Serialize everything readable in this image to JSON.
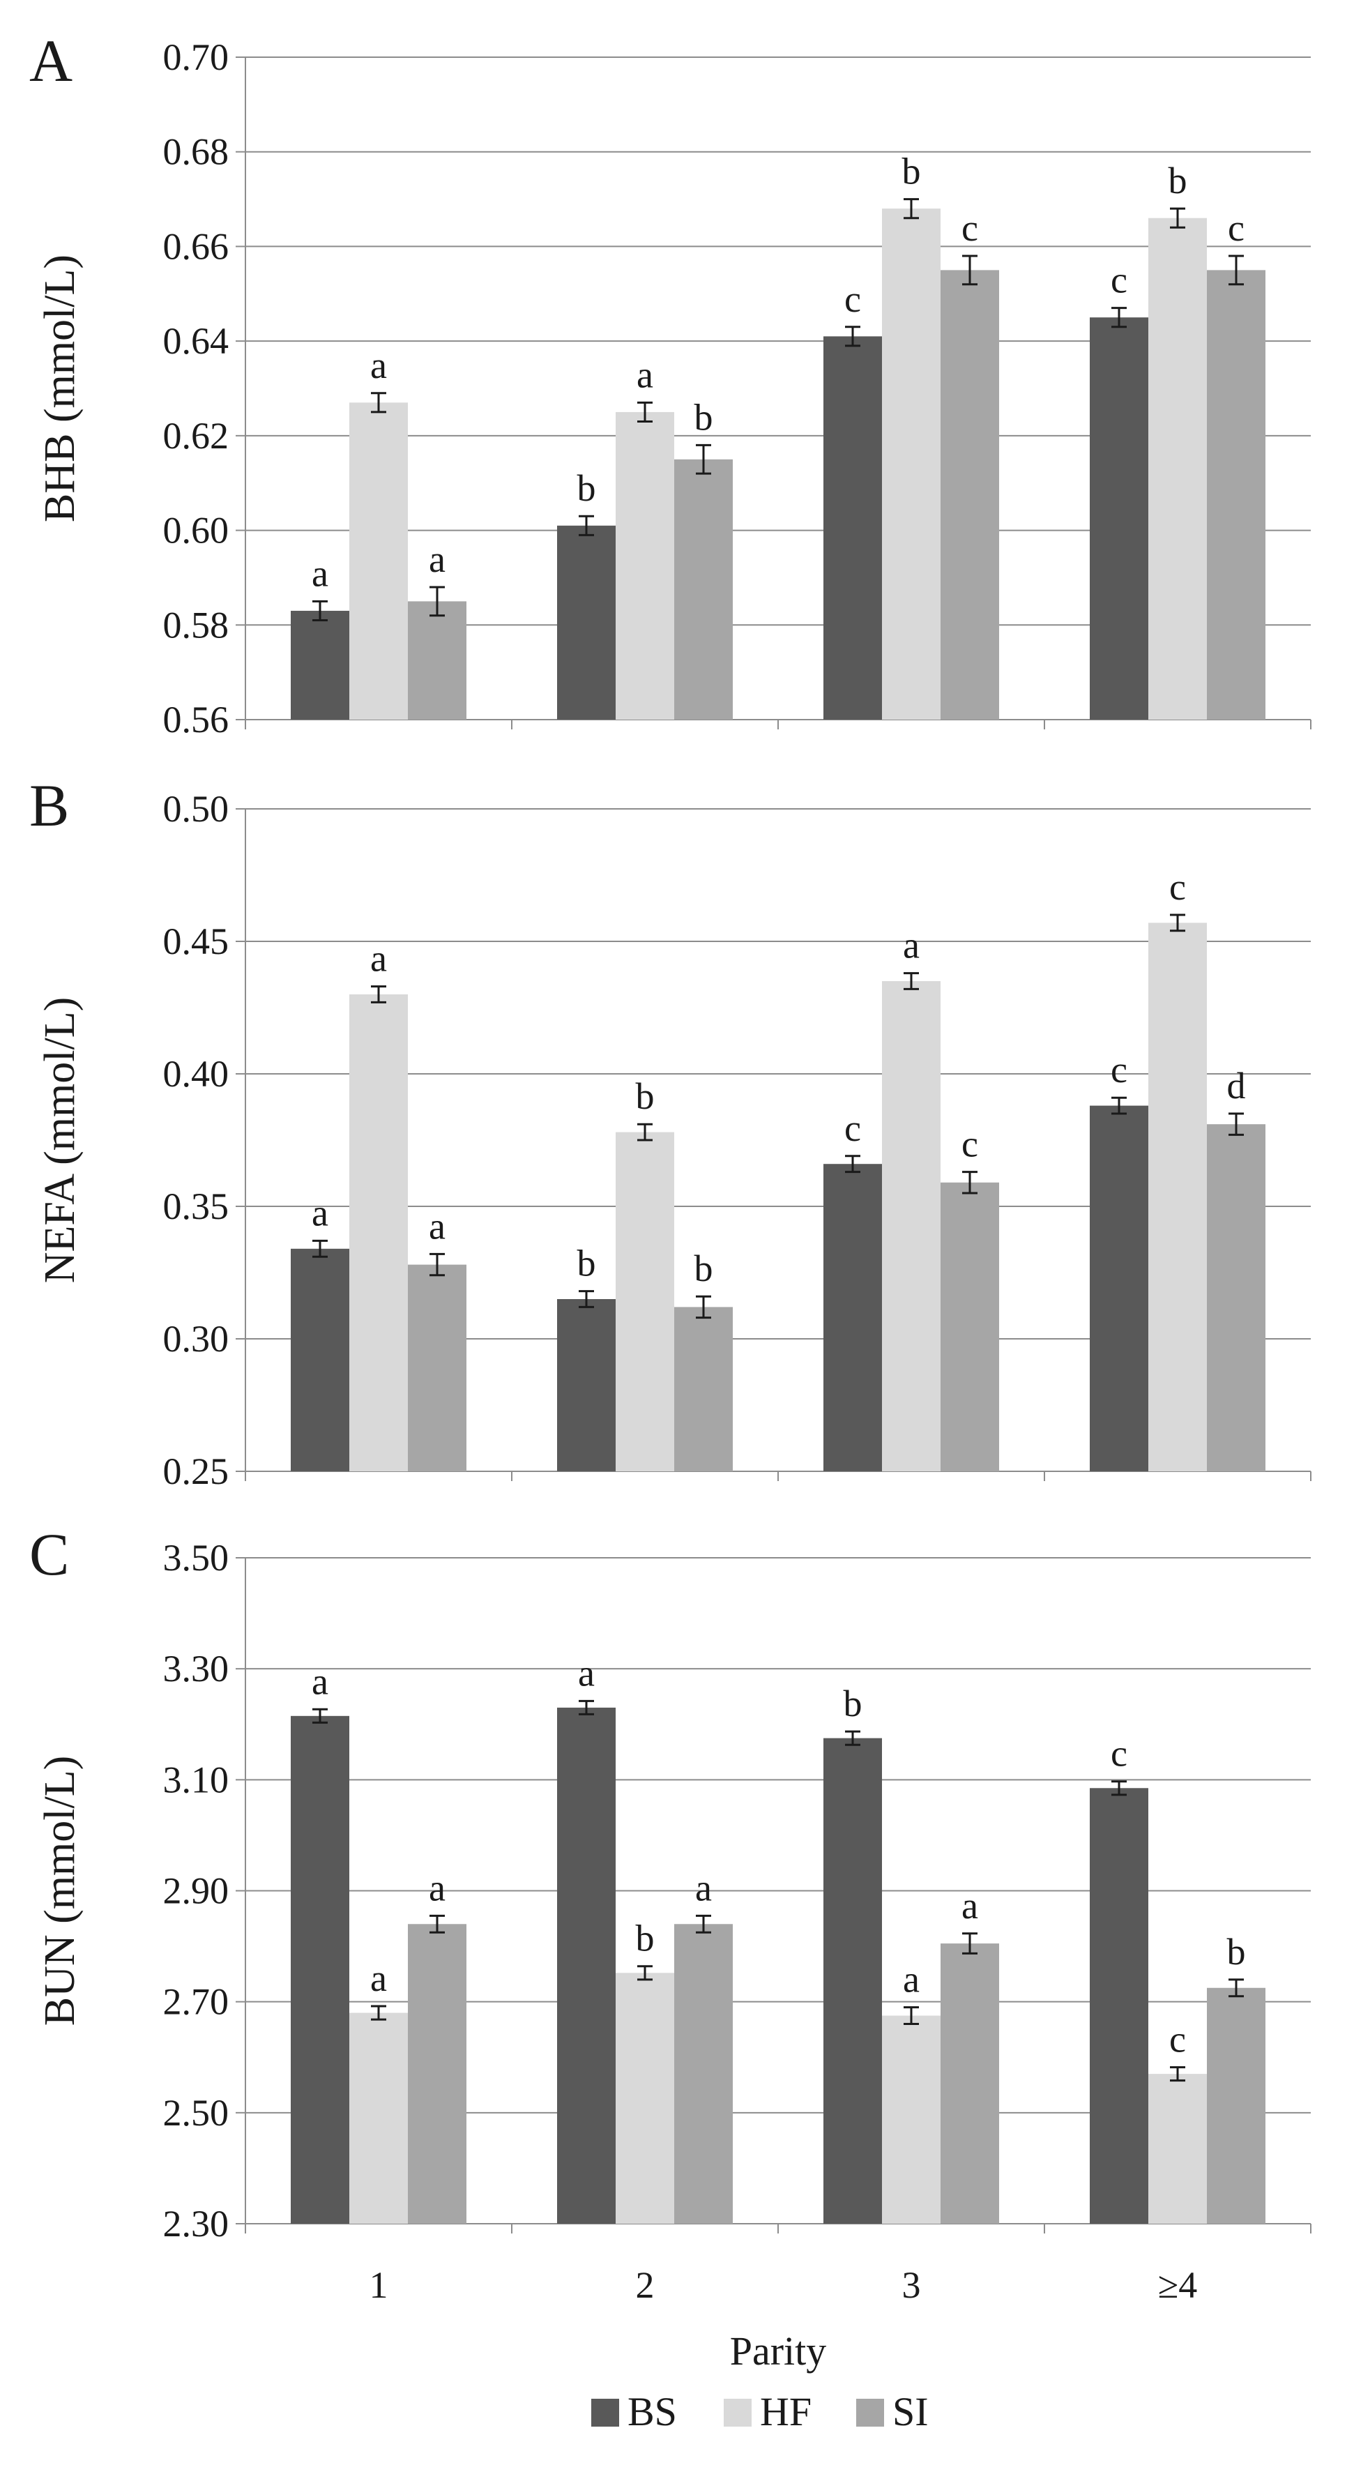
{
  "chart_data": {
    "type": "bar",
    "series_names": [
      "BS",
      "HF",
      "SI"
    ],
    "colors": {
      "BS": "#595959",
      "HF": "#d9d9d9",
      "SI": "#a6a6a6"
    },
    "categories": [
      "1",
      "2",
      "3",
      "≥4"
    ],
    "xlabel": "Parity",
    "panels": [
      {
        "letter": "A",
        "ylabel": "BHB (mmol/L)",
        "ylim": [
          0.56,
          0.7
        ],
        "ticks": [
          0.56,
          0.58,
          0.6,
          0.62,
          0.64,
          0.66,
          0.68,
          0.7
        ],
        "tick_labels": [
          "0.56",
          "0.58",
          "0.60",
          "0.62",
          "0.64",
          "0.66",
          "0.68",
          "0.70"
        ],
        "series": [
          {
            "name": "BS",
            "values": [
              0.583,
              0.601,
              0.641,
              0.645
            ],
            "errors": [
              0.002,
              0.002,
              0.002,
              0.002
            ],
            "letters": [
              "a",
              "b",
              "c",
              "c"
            ]
          },
          {
            "name": "HF",
            "values": [
              0.627,
              0.625,
              0.668,
              0.666
            ],
            "errors": [
              0.002,
              0.002,
              0.002,
              0.002
            ],
            "letters": [
              "a",
              "a",
              "b",
              "b"
            ]
          },
          {
            "name": "SI",
            "values": [
              0.585,
              0.615,
              0.655,
              0.655
            ],
            "errors": [
              0.003,
              0.003,
              0.003,
              0.003
            ],
            "letters": [
              "a",
              "b",
              "c",
              "c"
            ]
          }
        ]
      },
      {
        "letter": "B",
        "ylabel": "NEFA (mmol/L)",
        "ylim": [
          0.25,
          0.5
        ],
        "ticks": [
          0.25,
          0.3,
          0.35,
          0.4,
          0.45,
          0.5
        ],
        "tick_labels": [
          "0.25",
          "0.30",
          "0.35",
          "0.40",
          "0.45",
          "0.50"
        ],
        "series": [
          {
            "name": "BS",
            "values": [
              0.334,
              0.315,
              0.366,
              0.388
            ],
            "errors": [
              0.003,
              0.003,
              0.003,
              0.003
            ],
            "letters": [
              "a",
              "b",
              "c",
              "c"
            ]
          },
          {
            "name": "HF",
            "values": [
              0.43,
              0.378,
              0.435,
              0.457
            ],
            "errors": [
              0.003,
              0.003,
              0.003,
              0.003
            ],
            "letters": [
              "a",
              "b",
              "a",
              "c"
            ]
          },
          {
            "name": "SI",
            "values": [
              0.328,
              0.312,
              0.359,
              0.381
            ],
            "errors": [
              0.004,
              0.004,
              0.004,
              0.004
            ],
            "letters": [
              "a",
              "b",
              "c",
              "d"
            ]
          }
        ]
      },
      {
        "letter": "C",
        "ylabel": "BUN (mmol/L)",
        "ylim": [
          2.3,
          3.5
        ],
        "ticks": [
          2.3,
          2.5,
          2.7,
          2.9,
          3.1,
          3.3,
          3.5
        ],
        "tick_labels": [
          "2.30",
          "2.50",
          "2.70",
          "2.90",
          "3.10",
          "3.30",
          "3.50"
        ],
        "series": [
          {
            "name": "BS",
            "values": [
              3.215,
              3.23,
              3.175,
              3.085
            ],
            "errors": [
              0.012,
              0.012,
              0.012,
              0.012
            ],
            "letters": [
              "a",
              "a",
              "b",
              "c"
            ]
          },
          {
            "name": "HF",
            "values": [
              2.68,
              2.752,
              2.675,
              2.57
            ],
            "errors": [
              0.012,
              0.012,
              0.015,
              0.012
            ],
            "letters": [
              "a",
              "b",
              "a",
              "c"
            ]
          },
          {
            "name": "SI",
            "values": [
              2.84,
              2.84,
              2.805,
              2.725
            ],
            "errors": [
              0.015,
              0.015,
              0.018,
              0.015
            ],
            "letters": [
              "a",
              "a",
              "a",
              "b"
            ]
          }
        ]
      }
    ]
  }
}
